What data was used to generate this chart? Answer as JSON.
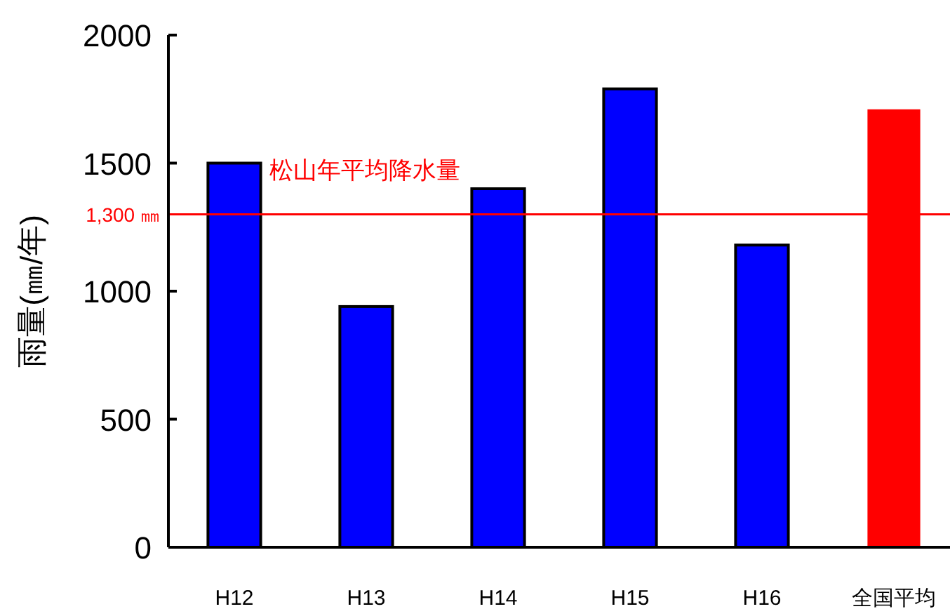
{
  "chart_data": {
    "type": "bar",
    "ylabel": "雨量(㎜/年)",
    "categories": [
      "H12",
      "H13",
      "H14",
      "H15",
      "H16",
      "全国平均"
    ],
    "values": [
      1500,
      940,
      1400,
      1790,
      1180,
      1710
    ],
    "colors": [
      "#0000ff",
      "#0000ff",
      "#0000ff",
      "#0000ff",
      "#0000ff",
      "#ff0000"
    ],
    "ylim": [
      0,
      2000
    ],
    "yticks": [
      0,
      500,
      1000,
      1500,
      2000
    ],
    "grid": false,
    "ref_lines": [
      {
        "axis": "y",
        "value": 1300,
        "label": "1,300 ㎜",
        "color": "#ff0000"
      }
    ],
    "annotations": [
      "松山年平均降水量"
    ]
  }
}
